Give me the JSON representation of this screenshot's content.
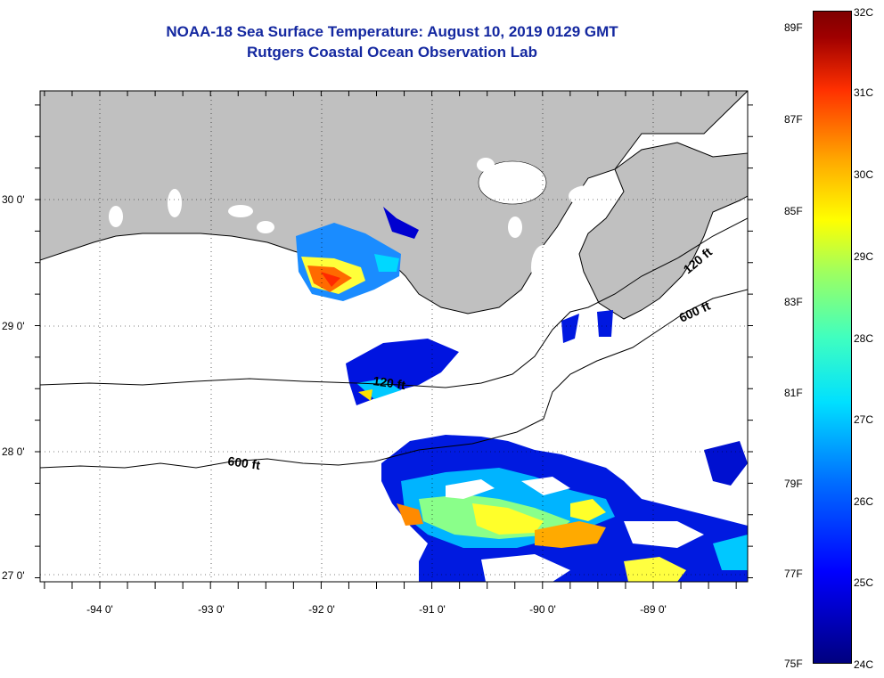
{
  "title": {
    "line1": "NOAA-18 Sea Surface Temperature:  August 10, 2019 0129 GMT",
    "line2": "Rutgers Coastal Ocean Observation Lab"
  },
  "map": {
    "longitude_labels": [
      "-94 0'",
      "-93 0'",
      "-92 0'",
      "-91 0'",
      "-90 0'",
      "-89 0'"
    ],
    "latitude_labels": [
      "30 0'",
      "29 0'",
      "28 0'",
      "27 0'"
    ],
    "contour_labels": [
      "120 ft",
      "600 ft",
      "120 ft",
      "600 ft"
    ],
    "land_color": "#c0c0c0"
  },
  "colorbar": {
    "celsius_labels": [
      "32C",
      "31C",
      "30C",
      "29C",
      "28C",
      "27C",
      "26C",
      "25C",
      "24C"
    ],
    "fahrenheit_labels": [
      "89F",
      "87F",
      "85F",
      "83F",
      "81F",
      "79F",
      "77F",
      "75F"
    ],
    "colors": [
      "#00007f",
      "#0000ff",
      "#0070ff",
      "#00e0ff",
      "#9fff5f",
      "#ffff00",
      "#ffaa00",
      "#ff3000",
      "#7f0000"
    ]
  }
}
